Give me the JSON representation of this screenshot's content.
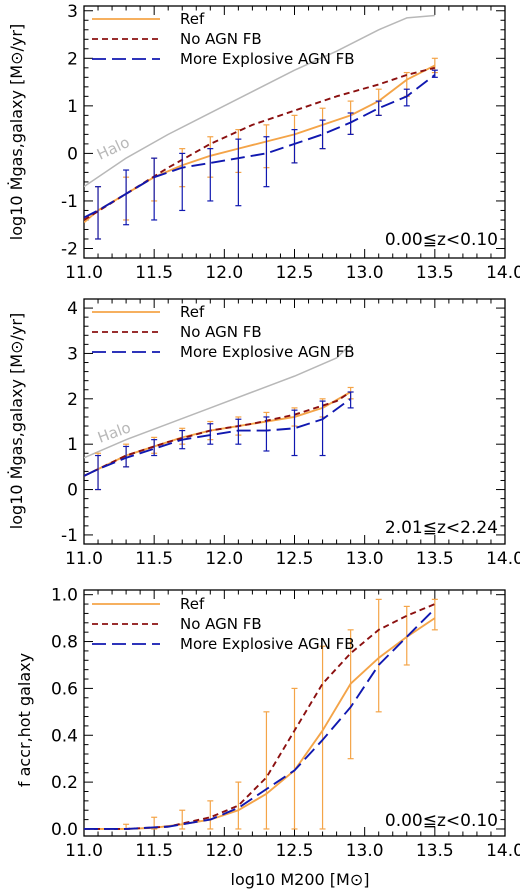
{
  "chart_data": [
    {
      "type": "line",
      "xlabel": "",
      "ylabel": "log10 Ṁgas,galaxy [M⊙/yr]",
      "xlim": [
        11.0,
        14.0
      ],
      "ylim": [
        -2.2,
        3.1
      ],
      "xticks": [
        "11.0",
        "11.5",
        "12.0",
        "12.5",
        "13.0",
        "13.5",
        "14.0"
      ],
      "yticks": [
        "-2",
        "-1",
        "0",
        "1",
        "2",
        "3"
      ],
      "annotation": "0.00≦z<0.10",
      "halo_label": "Halo",
      "legend": {
        "position": "top-left",
        "entries": [
          "Ref",
          "No AGN FB",
          "More Explosive AGN FB"
        ]
      },
      "series": [
        {
          "name": "Halo",
          "color": "#b8b8b8",
          "dash": "solid",
          "x": [
            11.0,
            11.3,
            11.6,
            11.9,
            12.2,
            12.5,
            12.8,
            13.1,
            13.3,
            13.5
          ],
          "y": [
            -0.7,
            -0.1,
            0.4,
            0.85,
            1.3,
            1.75,
            2.15,
            2.6,
            2.85,
            2.9
          ]
        },
        {
          "name": "Ref",
          "color": "#f4a448",
          "dash": "solid",
          "x": [
            11.0,
            11.1,
            11.3,
            11.5,
            11.7,
            11.9,
            12.1,
            12.3,
            12.5,
            12.7,
            12.9,
            13.1,
            13.3,
            13.5
          ],
          "y": [
            -1.45,
            -1.2,
            -0.85,
            -0.5,
            -0.25,
            -0.05,
            0.1,
            0.25,
            0.4,
            0.6,
            0.8,
            1.1,
            1.55,
            1.85
          ],
          "err_x": [
            11.1,
            11.3,
            11.5,
            11.7,
            11.9,
            12.1,
            12.3,
            12.5,
            12.7,
            12.9,
            13.1,
            13.3,
            13.5
          ],
          "err_lo": [
            -1.8,
            -1.4,
            -1.0,
            -0.7,
            -0.5,
            -0.4,
            -0.3,
            -0.2,
            0.1,
            0.4,
            0.8,
            1.2,
            1.7
          ],
          "err_hi": [
            -0.7,
            -0.5,
            -0.1,
            0.1,
            0.35,
            0.5,
            0.6,
            0.8,
            0.95,
            1.1,
            1.35,
            1.7,
            2.0
          ]
        },
        {
          "name": "No AGN FB",
          "color": "#8b1010",
          "dash": "6,4",
          "x": [
            11.0,
            11.3,
            11.6,
            11.9,
            12.2,
            12.5,
            12.8,
            13.1,
            13.3,
            13.5
          ],
          "y": [
            -1.4,
            -0.85,
            -0.3,
            0.2,
            0.6,
            0.9,
            1.2,
            1.45,
            1.65,
            1.8
          ]
        },
        {
          "name": "More Explosive AGN FB",
          "color": "#1018b0",
          "dash": "14,6",
          "x": [
            11.0,
            11.1,
            11.3,
            11.5,
            11.7,
            11.9,
            12.1,
            12.3,
            12.5,
            12.7,
            12.9,
            13.1,
            13.3,
            13.5
          ],
          "y": [
            -1.35,
            -1.2,
            -0.85,
            -0.5,
            -0.3,
            -0.2,
            -0.1,
            0.0,
            0.2,
            0.4,
            0.65,
            0.95,
            1.2,
            1.65
          ],
          "err_x": [
            11.1,
            11.3,
            11.5,
            11.7,
            11.9,
            12.1,
            12.3,
            12.5,
            12.7,
            12.9,
            13.1,
            13.3,
            13.5
          ],
          "err_lo": [
            -1.8,
            -1.5,
            -1.4,
            -1.2,
            -1.0,
            -1.1,
            -0.7,
            -0.2,
            0.1,
            0.4,
            0.8,
            1.0,
            1.6
          ],
          "err_hi": [
            -0.7,
            -0.35,
            -0.1,
            0.0,
            0.1,
            0.3,
            0.35,
            0.5,
            0.7,
            0.85,
            1.1,
            1.35,
            1.75
          ]
        }
      ]
    },
    {
      "type": "line",
      "xlabel": "",
      "ylabel": "log10 Ṁgas,galaxy [M⊙/yr]",
      "xlim": [
        11.0,
        14.0
      ],
      "ylim": [
        -1.2,
        4.2
      ],
      "xticks": [
        "11.0",
        "11.5",
        "12.0",
        "12.5",
        "13.0",
        "13.5",
        "14.0"
      ],
      "yticks": [
        "-1",
        "0",
        "1",
        "2",
        "3",
        "4"
      ],
      "annotation": "2.01≦z<2.24",
      "halo_label": "Halo",
      "legend": {
        "position": "top-left",
        "entries": [
          "Ref",
          "No AGN FB",
          "More Explosive AGN FB"
        ]
      },
      "series": [
        {
          "name": "Halo",
          "color": "#b8b8b8",
          "dash": "solid",
          "x": [
            11.0,
            11.3,
            11.6,
            11.9,
            12.2,
            12.5,
            12.8,
            12.9
          ],
          "y": [
            0.7,
            1.1,
            1.45,
            1.8,
            2.15,
            2.5,
            2.9,
            3.2
          ]
        },
        {
          "name": "Ref",
          "color": "#f4a448",
          "dash": "solid",
          "x": [
            11.0,
            11.1,
            11.3,
            11.5,
            11.7,
            11.9,
            12.1,
            12.3,
            12.5,
            12.7,
            12.9
          ],
          "y": [
            0.3,
            0.45,
            0.75,
            0.95,
            1.15,
            1.3,
            1.4,
            1.5,
            1.6,
            1.8,
            2.15
          ],
          "err_x": [
            11.1,
            11.3,
            11.5,
            11.7,
            11.9,
            12.1,
            12.3,
            12.5,
            12.7,
            12.9
          ],
          "err_lo": [
            0.0,
            0.5,
            0.8,
            1.0,
            1.1,
            1.2,
            1.3,
            1.4,
            1.6,
            2.0
          ],
          "err_hi": [
            0.8,
            1.0,
            1.15,
            1.35,
            1.5,
            1.6,
            1.7,
            1.8,
            2.0,
            2.25
          ]
        },
        {
          "name": "No AGN FB",
          "color": "#8b1010",
          "dash": "6,4",
          "x": [
            11.0,
            11.3,
            11.6,
            11.9,
            12.2,
            12.5,
            12.8,
            12.9
          ],
          "y": [
            0.3,
            0.75,
            1.05,
            1.3,
            1.45,
            1.65,
            1.95,
            2.15
          ]
        },
        {
          "name": "More Explosive AGN FB",
          "color": "#1018b0",
          "dash": "14,6",
          "x": [
            11.0,
            11.1,
            11.3,
            11.5,
            11.7,
            11.9,
            12.1,
            12.3,
            12.5,
            12.7,
            12.9
          ],
          "y": [
            0.3,
            0.45,
            0.7,
            0.9,
            1.1,
            1.2,
            1.3,
            1.3,
            1.35,
            1.55,
            2.0
          ],
          "err_x": [
            11.1,
            11.3,
            11.5,
            11.7,
            11.9,
            12.1,
            12.3,
            12.5,
            12.7,
            12.9
          ],
          "err_lo": [
            0.0,
            0.5,
            0.75,
            0.9,
            1.0,
            1.0,
            0.85,
            0.75,
            0.75,
            1.8
          ],
          "err_hi": [
            0.75,
            0.95,
            1.1,
            1.3,
            1.45,
            1.55,
            1.6,
            1.75,
            1.95,
            2.15
          ]
        }
      ]
    },
    {
      "type": "line",
      "xlabel": "log10 M200 [M⊙]",
      "ylabel": "f accr,hot galaxy",
      "xlim": [
        11.0,
        14.0
      ],
      "ylim": [
        -0.03,
        1.02
      ],
      "xticks": [
        "11.0",
        "11.5",
        "12.0",
        "12.5",
        "13.0",
        "13.5",
        "14.0"
      ],
      "yticks": [
        "0.0",
        "0.2",
        "0.4",
        "0.6",
        "0.8",
        "1.0"
      ],
      "annotation": "0.00≦z<0.10",
      "legend": {
        "position": "top-left",
        "entries": [
          "Ref",
          "No AGN FB",
          "More Explosive AGN FB"
        ]
      },
      "series": [
        {
          "name": "Ref",
          "color": "#f4a448",
          "dash": "solid",
          "x": [
            11.0,
            11.3,
            11.5,
            11.7,
            11.9,
            12.1,
            12.3,
            12.5,
            12.7,
            12.9,
            13.1,
            13.3,
            13.5
          ],
          "y": [
            0.0,
            0.0,
            0.005,
            0.02,
            0.04,
            0.08,
            0.15,
            0.25,
            0.42,
            0.62,
            0.73,
            0.82,
            0.9
          ],
          "err_x": [
            11.3,
            11.5,
            11.7,
            11.9,
            12.1,
            12.3,
            12.5,
            12.7,
            12.9,
            13.1,
            13.3,
            13.5
          ],
          "err_lo": [
            0.0,
            0.0,
            0.0,
            0.0,
            0.0,
            0.0,
            0.0,
            0.0,
            0.3,
            0.5,
            0.7,
            0.85
          ],
          "err_hi": [
            0.02,
            0.05,
            0.08,
            0.12,
            0.2,
            0.5,
            0.6,
            0.78,
            0.85,
            0.98,
            0.95,
            0.98
          ]
        },
        {
          "name": "No AGN FB",
          "color": "#8b1010",
          "dash": "6,4",
          "x": [
            11.0,
            11.3,
            11.6,
            11.9,
            12.1,
            12.3,
            12.5,
            12.7,
            12.9,
            13.1,
            13.3,
            13.5
          ],
          "y": [
            0.0,
            0.0,
            0.01,
            0.05,
            0.1,
            0.22,
            0.42,
            0.62,
            0.75,
            0.85,
            0.91,
            0.96
          ]
        },
        {
          "name": "More Explosive AGN FB",
          "color": "#1018b0",
          "dash": "14,6",
          "x": [
            11.0,
            11.3,
            11.6,
            11.9,
            12.1,
            12.3,
            12.5,
            12.7,
            12.9,
            13.1,
            13.3,
            13.5
          ],
          "y": [
            0.0,
            0.0,
            0.01,
            0.04,
            0.09,
            0.17,
            0.25,
            0.38,
            0.52,
            0.7,
            0.82,
            0.94
          ]
        }
      ]
    }
  ]
}
